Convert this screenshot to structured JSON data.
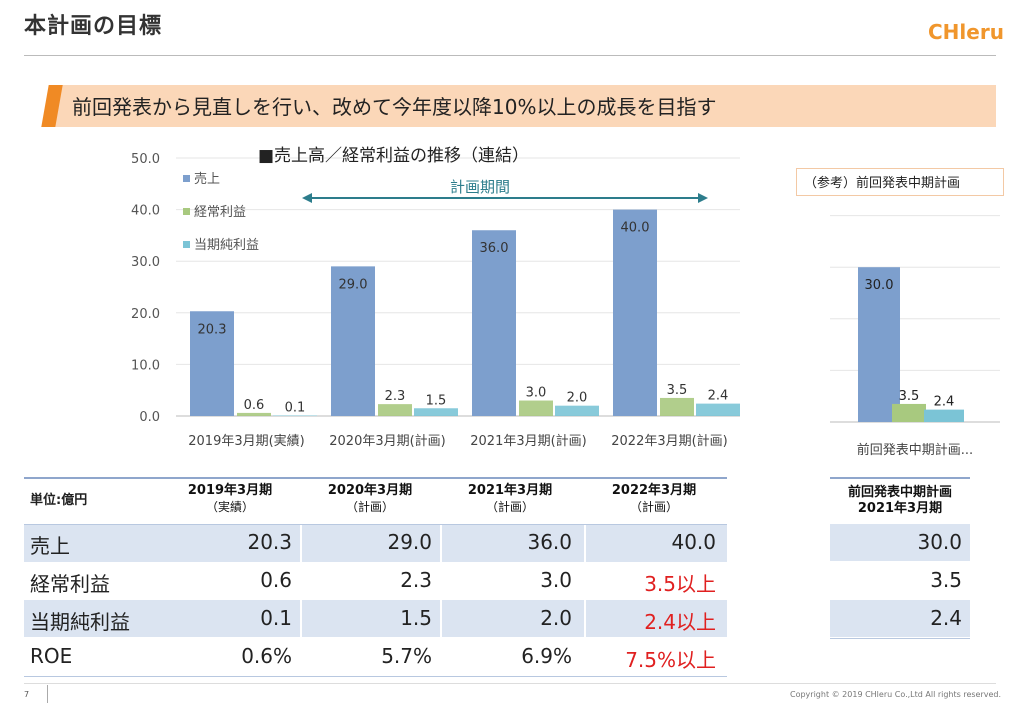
{
  "header": {
    "title": "本計画の目標",
    "logo": "CHleru"
  },
  "banner": {
    "text": "前回発表から見直しを行い、改めて今年度以降10%以上の成長を目指す"
  },
  "chart_data": [
    {
      "type": "bar",
      "title": "■売上高／経常利益の推移（連結）",
      "annotation": "計画期間",
      "categories": [
        "2019年3月期(実績)",
        "2020年3月期(計画)",
        "2021年3月期(計画)",
        "2022年3月期(計画)"
      ],
      "series": [
        {
          "name": "売上",
          "values": [
            20.3,
            29.0,
            36.0,
            40.0
          ],
          "color": "#7d9fcd"
        },
        {
          "name": "経常利益",
          "values": [
            0.6,
            2.3,
            3.0,
            3.5
          ],
          "color": "#a8c97f"
        },
        {
          "name": "当期純利益",
          "values": [
            0.1,
            1.5,
            2.0,
            2.4
          ],
          "color": "#7bc4d6"
        }
      ],
      "value_labels": [
        [
          "20.3",
          "29.0",
          "36.0",
          "40.0"
        ],
        [
          "0.6",
          "2.3",
          "3.0",
          "3.5"
        ],
        [
          "0.1",
          "1.5",
          "2.0",
          "2.4"
        ]
      ],
      "ylim": [
        0,
        50
      ],
      "yticks": [
        "0.0",
        "10.0",
        "20.0",
        "30.0",
        "40.0",
        "50.0"
      ],
      "grid": true,
      "legend": "top-left"
    },
    {
      "type": "bar",
      "categories": [
        "前回発表中期計画..."
      ],
      "series": [
        {
          "name": "売上",
          "values": [
            30.0
          ],
          "color": "#7d9fcd"
        },
        {
          "name": "経常利益",
          "values": [
            3.5
          ],
          "color": "#a8c97f"
        },
        {
          "name": "当期純利益",
          "values": [
            2.4
          ],
          "color": "#7bc4d6"
        }
      ],
      "value_labels": [
        [
          "30.0"
        ],
        [
          "3.5"
        ],
        [
          "2.4"
        ]
      ],
      "ylim": [
        0,
        50
      ],
      "grid": true
    }
  ],
  "reference": {
    "label": "（参考）前回発表中期計画"
  },
  "table": {
    "unit": "単位:億円",
    "headers": [
      {
        "year": "2019年3月期",
        "sub": "（実績）"
      },
      {
        "year": "2020年3月期",
        "sub": "（計画）"
      },
      {
        "year": "2021年3月期",
        "sub": "（計画）"
      },
      {
        "year": "2022年3月期",
        "sub": "（計画）"
      }
    ],
    "rows": [
      {
        "label": "売上",
        "values": [
          "20.3",
          "29.0",
          "36.0",
          "40.0"
        ],
        "target": false
      },
      {
        "label": "経常利益",
        "values": [
          "0.6",
          "2.3",
          "3.0",
          "3.5以上"
        ],
        "target": true
      },
      {
        "label": "当期純利益",
        "values": [
          "0.1",
          "1.5",
          "2.0",
          "2.4以上"
        ],
        "target": true
      },
      {
        "label": "ROE",
        "values": [
          "0.6%",
          "5.7%",
          "6.9%",
          "7.5%以上"
        ],
        "target": true
      }
    ],
    "highlight_color": "#e02020"
  },
  "ref_table": {
    "header_line1": "前回発表中期計画",
    "header_line2": "2021年3月期",
    "values": [
      "30.0",
      "3.5",
      "2.4"
    ]
  },
  "footer": {
    "page": "7",
    "copyright": "Copyright © 2019 CHleru Co.,Ltd All rights reserved."
  }
}
